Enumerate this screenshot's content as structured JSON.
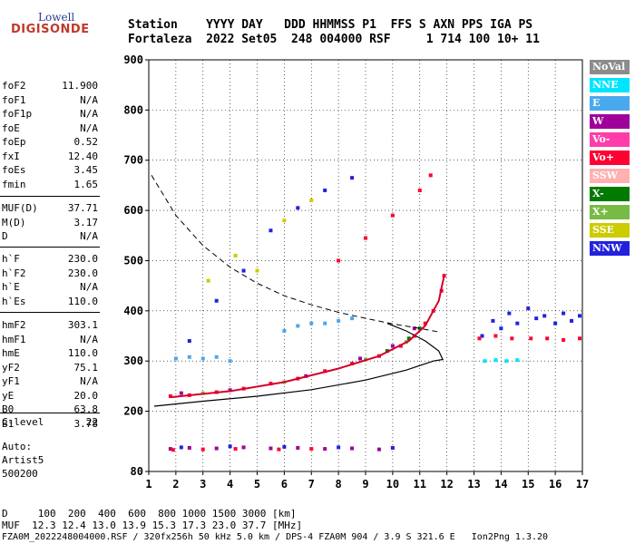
{
  "logo": {
    "line1": "Lowell",
    "line2": "DIGISONDE"
  },
  "header": {
    "labels": "Station    YYYY DAY   DDD HHMMSS P1  FFS S AXN PPS IGA PS",
    "values": "Fortaleza  2022 Set05  248 004000 RSF     1 714 100 10+ 11"
  },
  "params_block1": [
    {
      "name": "foF2",
      "value": "11.900"
    },
    {
      "name": "foF1",
      "value": "N/A"
    },
    {
      "name": "foF1p",
      "value": "N/A"
    },
    {
      "name": "foE",
      "value": "N/A"
    },
    {
      "name": "foEp",
      "value": "0.52"
    },
    {
      "name": "fxI",
      "value": "12.40"
    },
    {
      "name": "foEs",
      "value": "3.45"
    },
    {
      "name": "fmin",
      "value": "1.65"
    }
  ],
  "params_block2": [
    {
      "name": "MUF(D)",
      "value": "37.71"
    },
    {
      "name": "M(D)",
      "value": "3.17"
    },
    {
      "name": "D",
      "value": "N/A"
    }
  ],
  "params_block3": [
    {
      "name": "h`F",
      "value": "230.0"
    },
    {
      "name": "h`F2",
      "value": "230.0"
    },
    {
      "name": "h`E",
      "value": "N/A"
    },
    {
      "name": "h`Es",
      "value": "110.0"
    }
  ],
  "params_block4": [
    {
      "name": "hmF2",
      "value": "303.1"
    },
    {
      "name": "hmF1",
      "value": "N/A"
    },
    {
      "name": "hmE",
      "value": "110.0"
    },
    {
      "name": "yF2",
      "value": "75.1"
    },
    {
      "name": "yF1",
      "value": "N/A"
    },
    {
      "name": "yE",
      "value": "20.0"
    },
    {
      "name": "B0",
      "value": "63.8"
    },
    {
      "name": "B1",
      "value": "3.78"
    }
  ],
  "clevel": {
    "name": "C-level",
    "value": "22"
  },
  "autoscaling": [
    "Auto:",
    "Artist5",
    "500200"
  ],
  "footer": {
    "d_line": "D     100  200  400  600  800 1000 1500 3000 [km]",
    "muf_line": "MUF  12.3 12.4 13.0 13.9 15.3 17.3 23.0 37.7 [MHz]",
    "file_line": "FZA0M_2022248004000.RSF / 320fx256h 50 kHz 5.0 km / DPS-4 FZA0M 904 / 3.9 S 321.6 E   Ion2Png 1.3.20"
  },
  "legend": [
    {
      "label": "NoVal",
      "color": "#8c8c8c"
    },
    {
      "label": "NNE",
      "color": "#00e5ff"
    },
    {
      "label": "E",
      "color": "#4aa8ee"
    },
    {
      "label": "W",
      "color": "#a0009a"
    },
    {
      "label": "Vo-",
      "color": "#ff3caa"
    },
    {
      "label": "Vo+",
      "color": "#ff0033"
    },
    {
      "label": "SSW",
      "color": "#ffb0b0"
    },
    {
      "label": "X-",
      "color": "#007a00"
    },
    {
      "label": "X+",
      "color": "#77bb44"
    },
    {
      "label": "SSE",
      "color": "#cccc00"
    },
    {
      "label": "NNW",
      "color": "#2222dd"
    }
  ],
  "chart_data": {
    "type": "scatter",
    "xlim": [
      1,
      17
    ],
    "ylim": [
      80,
      900
    ],
    "x_ticks": [
      1,
      2,
      3,
      4,
      5,
      6,
      7,
      8,
      9,
      10,
      11,
      12,
      13,
      14,
      15,
      16,
      17
    ],
    "y_ticks": [
      80,
      200,
      300,
      400,
      500,
      600,
      700,
      800,
      900
    ],
    "grid": true,
    "series": [
      {
        "color": "#ff0033",
        "points": [
          [
            1.8,
            230
          ],
          [
            2.5,
            232
          ],
          [
            3.5,
            238
          ],
          [
            4.5,
            245
          ],
          [
            5.5,
            255
          ],
          [
            6.5,
            265
          ],
          [
            7.5,
            280
          ],
          [
            8.5,
            295
          ],
          [
            9.5,
            310
          ],
          [
            10.3,
            330
          ],
          [
            10.8,
            350
          ],
          [
            11.2,
            375
          ],
          [
            11.5,
            400
          ],
          [
            11.8,
            440
          ],
          [
            11.9,
            470
          ]
        ]
      },
      {
        "color": "#007a00",
        "points": [
          [
            9.8,
            320
          ],
          [
            10.6,
            345
          ],
          [
            11.0,
            365
          ]
        ]
      },
      {
        "color": "#77bb44",
        "points": [
          [
            3.0,
            236
          ],
          [
            6.0,
            258
          ],
          [
            9.0,
            303
          ],
          [
            10.5,
            338
          ]
        ]
      },
      {
        "color": "#a0009a",
        "points": [
          [
            2.2,
            236
          ],
          [
            4.0,
            242
          ],
          [
            6.8,
            270
          ],
          [
            8.8,
            305
          ],
          [
            10.0,
            330
          ],
          [
            10.8,
            365
          ]
        ]
      },
      {
        "color": "#4aa8ee",
        "points": [
          [
            2.0,
            305
          ],
          [
            2.5,
            308
          ],
          [
            3.0,
            305
          ],
          [
            3.5,
            308
          ],
          [
            4.0,
            300
          ],
          [
            6.0,
            360
          ],
          [
            6.5,
            370
          ],
          [
            7.0,
            375
          ],
          [
            7.5,
            375
          ],
          [
            8.0,
            380
          ],
          [
            8.5,
            385
          ]
        ]
      },
      {
        "color": "#2222dd",
        "points": [
          [
            13.3,
            350
          ],
          [
            13.7,
            380
          ],
          [
            14.0,
            365
          ],
          [
            14.3,
            395
          ],
          [
            14.6,
            375
          ],
          [
            15.0,
            405
          ],
          [
            15.3,
            385
          ],
          [
            15.6,
            390
          ],
          [
            16.0,
            375
          ],
          [
            16.3,
            395
          ],
          [
            16.6,
            380
          ],
          [
            16.9,
            390
          ]
        ]
      },
      {
        "color": "#ff0033",
        "points": [
          [
            13.2,
            345
          ],
          [
            13.8,
            350
          ],
          [
            14.4,
            345
          ],
          [
            15.1,
            345
          ],
          [
            15.7,
            345
          ],
          [
            16.3,
            342
          ],
          [
            16.9,
            345
          ]
        ]
      },
      {
        "color": "#00e5ff",
        "points": [
          [
            13.4,
            300
          ],
          [
            13.8,
            302
          ],
          [
            14.2,
            300
          ],
          [
            14.6,
            302
          ]
        ]
      },
      {
        "color": "#ff0033",
        "points": [
          [
            8.0,
            500
          ],
          [
            9.0,
            545
          ],
          [
            10.0,
            590
          ],
          [
            11.0,
            640
          ],
          [
            11.4,
            670
          ]
        ]
      },
      {
        "color": "#2222dd",
        "points": [
          [
            2.5,
            340
          ],
          [
            3.5,
            420
          ],
          [
            4.5,
            480
          ],
          [
            5.5,
            560
          ],
          [
            6.5,
            605
          ],
          [
            7.5,
            640
          ],
          [
            8.5,
            665
          ]
        ]
      },
      {
        "color": "#cccc00",
        "points": [
          [
            3.2,
            460
          ],
          [
            4.2,
            510
          ],
          [
            5.0,
            480
          ],
          [
            6.0,
            580
          ],
          [
            7.0,
            620
          ]
        ]
      },
      {
        "color": "#a0009a",
        "points": [
          [
            1.8,
            125
          ],
          [
            2.5,
            127
          ],
          [
            3.5,
            126
          ],
          [
            4.5,
            128
          ],
          [
            5.5,
            126
          ],
          [
            6.5,
            127
          ],
          [
            7.5,
            125
          ],
          [
            8.5,
            126
          ],
          [
            9.5,
            124
          ]
        ]
      },
      {
        "color": "#ff0033",
        "points": [
          [
            1.9,
            123
          ],
          [
            3.0,
            124
          ],
          [
            4.2,
            125
          ],
          [
            5.8,
            124
          ],
          [
            7.0,
            125
          ]
        ]
      },
      {
        "color": "#2222dd",
        "points": [
          [
            2.2,
            128
          ],
          [
            4.0,
            130
          ],
          [
            6.0,
            129
          ],
          [
            8.0,
            128
          ],
          [
            10.0,
            127
          ]
        ]
      }
    ],
    "dashed_curve": [
      [
        1.1,
        670
      ],
      [
        2,
        590
      ],
      [
        3,
        530
      ],
      [
        4,
        487
      ],
      [
        5,
        455
      ],
      [
        6,
        430
      ],
      [
        7,
        412
      ],
      [
        8,
        397
      ],
      [
        9,
        385
      ],
      [
        10,
        374
      ],
      [
        11,
        365
      ],
      [
        11.7,
        358
      ]
    ],
    "profile_curve": [
      [
        1.2,
        210
      ],
      [
        3,
        220
      ],
      [
        5,
        230
      ],
      [
        7,
        243
      ],
      [
        9,
        262
      ],
      [
        10.5,
        282
      ],
      [
        11.5,
        300
      ],
      [
        11.85,
        303
      ],
      [
        11.7,
        320
      ],
      [
        11.2,
        340
      ],
      [
        10.5,
        360
      ],
      [
        9.8,
        375
      ]
    ],
    "fitted_trace": [
      [
        1.8,
        228
      ],
      [
        4,
        240
      ],
      [
        6,
        258
      ],
      [
        8,
        285
      ],
      [
        9.5,
        310
      ],
      [
        10.6,
        340
      ],
      [
        11.2,
        370
      ],
      [
        11.7,
        420
      ],
      [
        11.9,
        470
      ]
    ]
  }
}
